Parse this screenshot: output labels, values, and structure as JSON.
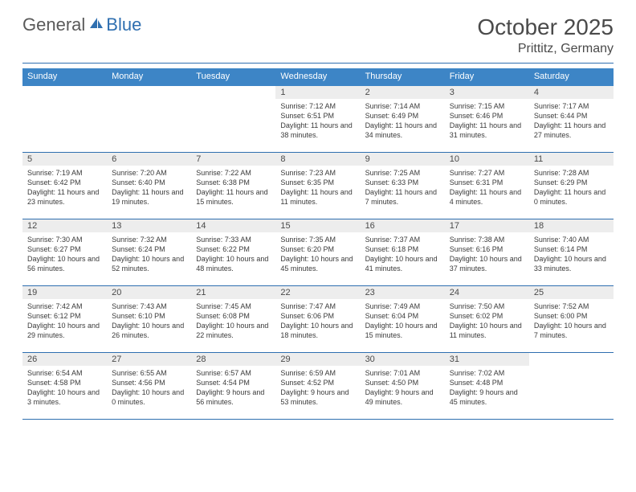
{
  "logo": {
    "general": "General",
    "blue": "Blue"
  },
  "title": "October 2025",
  "location": "Prittitz, Germany",
  "colors": {
    "header_bar": "#3d85c6",
    "accent": "#2f6fb0",
    "daynum_bg": "#ededed",
    "text": "#4a4a4a",
    "body_text": "#3a3a3a"
  },
  "day_labels": [
    "Sunday",
    "Monday",
    "Tuesday",
    "Wednesday",
    "Thursday",
    "Friday",
    "Saturday"
  ],
  "weeks": [
    [
      null,
      null,
      null,
      {
        "n": "1",
        "sr": "7:12 AM",
        "ss": "6:51 PM",
        "dl": "11 hours and 38 minutes."
      },
      {
        "n": "2",
        "sr": "7:14 AM",
        "ss": "6:49 PM",
        "dl": "11 hours and 34 minutes."
      },
      {
        "n": "3",
        "sr": "7:15 AM",
        "ss": "6:46 PM",
        "dl": "11 hours and 31 minutes."
      },
      {
        "n": "4",
        "sr": "7:17 AM",
        "ss": "6:44 PM",
        "dl": "11 hours and 27 minutes."
      }
    ],
    [
      {
        "n": "5",
        "sr": "7:19 AM",
        "ss": "6:42 PM",
        "dl": "11 hours and 23 minutes."
      },
      {
        "n": "6",
        "sr": "7:20 AM",
        "ss": "6:40 PM",
        "dl": "11 hours and 19 minutes."
      },
      {
        "n": "7",
        "sr": "7:22 AM",
        "ss": "6:38 PM",
        "dl": "11 hours and 15 minutes."
      },
      {
        "n": "8",
        "sr": "7:23 AM",
        "ss": "6:35 PM",
        "dl": "11 hours and 11 minutes."
      },
      {
        "n": "9",
        "sr": "7:25 AM",
        "ss": "6:33 PM",
        "dl": "11 hours and 7 minutes."
      },
      {
        "n": "10",
        "sr": "7:27 AM",
        "ss": "6:31 PM",
        "dl": "11 hours and 4 minutes."
      },
      {
        "n": "11",
        "sr": "7:28 AM",
        "ss": "6:29 PM",
        "dl": "11 hours and 0 minutes."
      }
    ],
    [
      {
        "n": "12",
        "sr": "7:30 AM",
        "ss": "6:27 PM",
        "dl": "10 hours and 56 minutes."
      },
      {
        "n": "13",
        "sr": "7:32 AM",
        "ss": "6:24 PM",
        "dl": "10 hours and 52 minutes."
      },
      {
        "n": "14",
        "sr": "7:33 AM",
        "ss": "6:22 PM",
        "dl": "10 hours and 48 minutes."
      },
      {
        "n": "15",
        "sr": "7:35 AM",
        "ss": "6:20 PM",
        "dl": "10 hours and 45 minutes."
      },
      {
        "n": "16",
        "sr": "7:37 AM",
        "ss": "6:18 PM",
        "dl": "10 hours and 41 minutes."
      },
      {
        "n": "17",
        "sr": "7:38 AM",
        "ss": "6:16 PM",
        "dl": "10 hours and 37 minutes."
      },
      {
        "n": "18",
        "sr": "7:40 AM",
        "ss": "6:14 PM",
        "dl": "10 hours and 33 minutes."
      }
    ],
    [
      {
        "n": "19",
        "sr": "7:42 AM",
        "ss": "6:12 PM",
        "dl": "10 hours and 29 minutes."
      },
      {
        "n": "20",
        "sr": "7:43 AM",
        "ss": "6:10 PM",
        "dl": "10 hours and 26 minutes."
      },
      {
        "n": "21",
        "sr": "7:45 AM",
        "ss": "6:08 PM",
        "dl": "10 hours and 22 minutes."
      },
      {
        "n": "22",
        "sr": "7:47 AM",
        "ss": "6:06 PM",
        "dl": "10 hours and 18 minutes."
      },
      {
        "n": "23",
        "sr": "7:49 AM",
        "ss": "6:04 PM",
        "dl": "10 hours and 15 minutes."
      },
      {
        "n": "24",
        "sr": "7:50 AM",
        "ss": "6:02 PM",
        "dl": "10 hours and 11 minutes."
      },
      {
        "n": "25",
        "sr": "7:52 AM",
        "ss": "6:00 PM",
        "dl": "10 hours and 7 minutes."
      }
    ],
    [
      {
        "n": "26",
        "sr": "6:54 AM",
        "ss": "4:58 PM",
        "dl": "10 hours and 3 minutes."
      },
      {
        "n": "27",
        "sr": "6:55 AM",
        "ss": "4:56 PM",
        "dl": "10 hours and 0 minutes."
      },
      {
        "n": "28",
        "sr": "6:57 AM",
        "ss": "4:54 PM",
        "dl": "9 hours and 56 minutes."
      },
      {
        "n": "29",
        "sr": "6:59 AM",
        "ss": "4:52 PM",
        "dl": "9 hours and 53 minutes."
      },
      {
        "n": "30",
        "sr": "7:01 AM",
        "ss": "4:50 PM",
        "dl": "9 hours and 49 minutes."
      },
      {
        "n": "31",
        "sr": "7:02 AM",
        "ss": "4:48 PM",
        "dl": "9 hours and 45 minutes."
      },
      null
    ]
  ],
  "labels": {
    "sunrise": "Sunrise:",
    "sunset": "Sunset:",
    "daylight": "Daylight:"
  }
}
